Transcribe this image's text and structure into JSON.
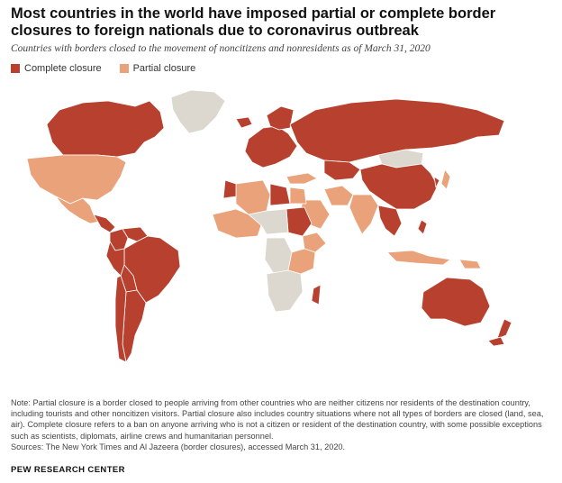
{
  "title": "Most countries in the world have imposed partial or complete border closures to foreign nationals due to coronavirus outbreak",
  "subtitle": "Countries with borders closed to the movement of noncitizens and nonresidents as of March 31, 2020",
  "legend": [
    {
      "label": "Complete closure",
      "color": "#b8402e"
    },
    {
      "label": "Partial closure",
      "color": "#e9a27a"
    }
  ],
  "colors": {
    "complete": "#b8402e",
    "partial": "#e9a27a",
    "none": "#dcd8cf",
    "border": "#ffffff"
  },
  "note": "Note: Partial closure is a border closed to people arriving from other countries who are neither citizens nor residents of the destination country, including tourists and other noncitizen visitors. Partial closure also includes country situations where not all types of borders are closed (land, sea, air). Complete closure refers to a ban on anyone arriving who is not a citizen or resident of the destination country, with some possible exceptions such as scientists, diplomats, airline crews and humanitarian personnel.",
  "sources": "Sources: The New York Times and Al Jazeera (border closures), accessed March 31, 2020.",
  "brand": "PEW RESEARCH CENTER",
  "map_regions": [
    {
      "name": "Canada",
      "status": "complete"
    },
    {
      "name": "Greenland",
      "status": "none"
    },
    {
      "name": "United States",
      "status": "partial"
    },
    {
      "name": "Mexico",
      "status": "partial"
    },
    {
      "name": "Central America",
      "status": "complete"
    },
    {
      "name": "Colombia",
      "status": "complete"
    },
    {
      "name": "Venezuela",
      "status": "complete"
    },
    {
      "name": "Brazil",
      "status": "complete"
    },
    {
      "name": "Peru",
      "status": "complete"
    },
    {
      "name": "Bolivia",
      "status": "complete"
    },
    {
      "name": "Argentina",
      "status": "complete"
    },
    {
      "name": "Chile",
      "status": "complete"
    },
    {
      "name": "Russia",
      "status": "complete"
    },
    {
      "name": "China",
      "status": "complete"
    },
    {
      "name": "Mongolia",
      "status": "none"
    },
    {
      "name": "India",
      "status": "partial"
    },
    {
      "name": "Kazakhstan",
      "status": "complete"
    },
    {
      "name": "Iran",
      "status": "partial"
    },
    {
      "name": "Saudi Arabia",
      "status": "partial"
    },
    {
      "name": "Australia",
      "status": "complete"
    },
    {
      "name": "New Zealand",
      "status": "complete"
    },
    {
      "name": "Sudan",
      "status": "complete"
    },
    {
      "name": "Libya",
      "status": "complete"
    },
    {
      "name": "Algeria",
      "status": "partial"
    },
    {
      "name": "DR Congo",
      "status": "none"
    },
    {
      "name": "Indonesia",
      "status": "partial"
    },
    {
      "name": "Japan",
      "status": "partial"
    }
  ]
}
